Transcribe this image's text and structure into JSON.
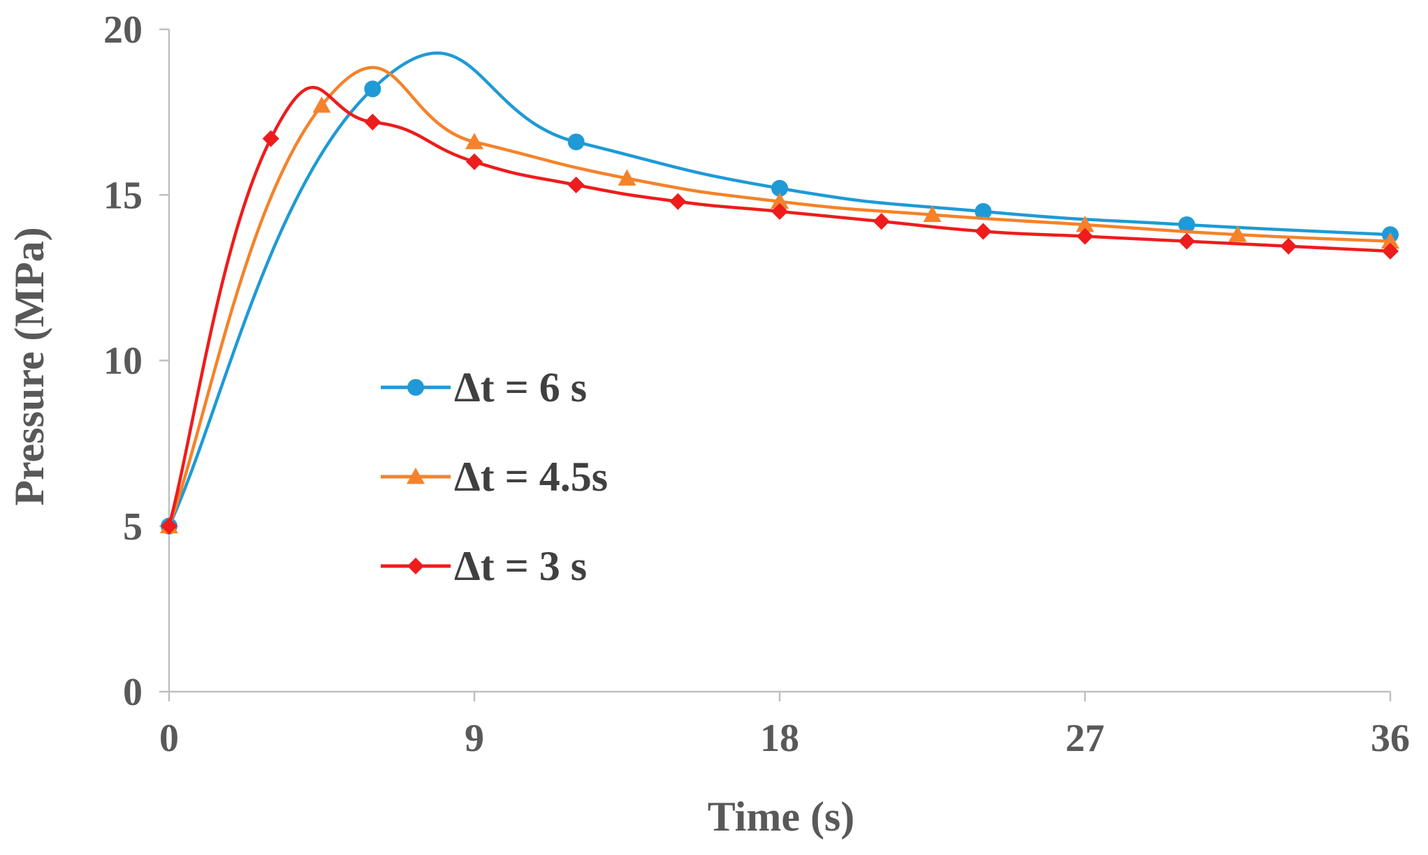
{
  "chart_data": {
    "type": "line",
    "title": "",
    "xlabel": "Time (s)",
    "ylabel": "Pressure (MPa)",
    "xlim": [
      0,
      36
    ],
    "ylim": [
      0,
      20
    ],
    "xticks": [
      "0",
      "9",
      "18",
      "27",
      "36"
    ],
    "yticks": [
      "0",
      "5",
      "10",
      "15",
      "20"
    ],
    "grid": false,
    "legend_position": "center-left",
    "series": [
      {
        "name": "Δt = 6 s",
        "color": "#1f9ad6",
        "marker": "circle",
        "x": [
          0,
          6,
          12,
          18,
          24,
          30,
          36
        ],
        "y": [
          5.0,
          18.2,
          16.6,
          15.2,
          14.5,
          14.1,
          13.8
        ]
      },
      {
        "name": "Δt = 4.5s",
        "color": "#f5822a",
        "marker": "triangle",
        "x": [
          0,
          4.5,
          9,
          13.5,
          18,
          22.5,
          27,
          31.5,
          36
        ],
        "y": [
          5.0,
          17.7,
          16.6,
          15.5,
          14.8,
          14.4,
          14.1,
          13.8,
          13.6
        ]
      },
      {
        "name": "Δt = 3 s",
        "color": "#ee1c1c",
        "marker": "diamond",
        "x": [
          0,
          3,
          6,
          9,
          12,
          15,
          18,
          21,
          24,
          27,
          30,
          33,
          36
        ],
        "y": [
          5.0,
          16.7,
          17.2,
          16.0,
          15.3,
          14.8,
          14.5,
          14.2,
          13.9,
          13.75,
          13.6,
          13.45,
          13.3
        ]
      }
    ]
  }
}
